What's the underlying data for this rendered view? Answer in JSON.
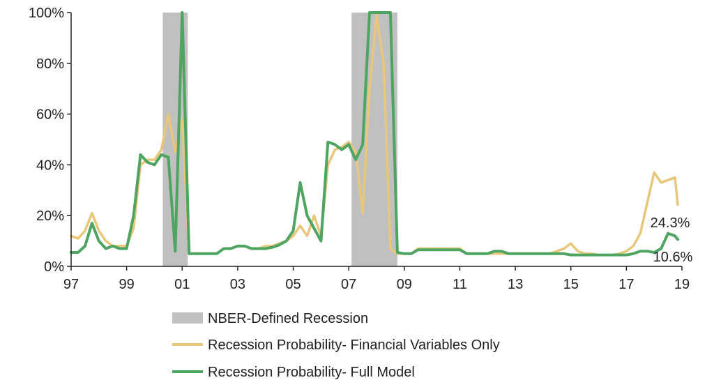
{
  "chart_data": {
    "type": "line",
    "x_tick_labels": [
      "97",
      "99",
      "01",
      "03",
      "05",
      "07",
      "09",
      "11",
      "13",
      "15",
      "17",
      "19"
    ],
    "y_tick_labels": [
      "0%",
      "20%",
      "40%",
      "60%",
      "80%",
      "100%"
    ],
    "xlim": [
      1997,
      2019
    ],
    "ylim": [
      0,
      100
    ],
    "grid": false,
    "legend_position": "bottom",
    "recessions": {
      "name": "NBER-Defined Recession",
      "color": "#c0c0c0",
      "periods": [
        [
          2000.3,
          2001.2
        ],
        [
          2007.1,
          2008.75
        ]
      ]
    },
    "series": [
      {
        "name": "Recession Probability- Financial Variables Only",
        "color": "#e8c77a",
        "end_label": "24.3%",
        "x": [
          1997.0,
          1997.25,
          1997.5,
          1997.75,
          1998.0,
          1998.25,
          1998.5,
          1998.75,
          1999.0,
          1999.25,
          1999.5,
          1999.75,
          2000.0,
          2000.25,
          2000.5,
          2000.75,
          2001.0,
          2001.25,
          2001.5,
          2001.75,
          2002.0,
          2002.25,
          2002.5,
          2002.75,
          2003.0,
          2003.25,
          2003.5,
          2003.75,
          2004.0,
          2004.25,
          2004.5,
          2004.75,
          2005.0,
          2005.25,
          2005.5,
          2005.75,
          2006.0,
          2006.25,
          2006.5,
          2006.75,
          2007.0,
          2007.25,
          2007.5,
          2007.75,
          2008.0,
          2008.25,
          2008.5,
          2008.75,
          2009.0,
          2009.25,
          2009.5,
          2009.75,
          2010.0,
          2010.25,
          2010.5,
          2010.75,
          2011.0,
          2011.25,
          2011.5,
          2011.75,
          2012.0,
          2012.25,
          2012.5,
          2012.75,
          2013.0,
          2013.25,
          2013.5,
          2013.75,
          2014.0,
          2014.25,
          2014.5,
          2014.75,
          2015.0,
          2015.25,
          2015.5,
          2015.75,
          2016.0,
          2016.25,
          2016.5,
          2016.75,
          2017.0,
          2017.25,
          2017.5,
          2017.75,
          2018.0,
          2018.25,
          2018.5,
          2018.75,
          2018.85
        ],
        "values": [
          12,
          11,
          14,
          21,
          14,
          10,
          8,
          8,
          8,
          15,
          40,
          42,
          42,
          46,
          60,
          45,
          58,
          5,
          5,
          5,
          5,
          5,
          7,
          7,
          8,
          8,
          7,
          7,
          8,
          8,
          9,
          10,
          12,
          16,
          12,
          20,
          12,
          40,
          46,
          47,
          49,
          45,
          21,
          70,
          99,
          80,
          7,
          5,
          5,
          5,
          7,
          7,
          7,
          7,
          7,
          7,
          7,
          5,
          5,
          5,
          5,
          5,
          5,
          5,
          5,
          5,
          5,
          5,
          5,
          5,
          6,
          7,
          9,
          6,
          5,
          5,
          4.5,
          4.5,
          4.5,
          5,
          6,
          8,
          13,
          25,
          37,
          33,
          34,
          35,
          24.3
        ]
      },
      {
        "name": "Recession Probability- Full Model",
        "color": "#4ea562",
        "end_label": "10.6%",
        "x": [
          1997.0,
          1997.25,
          1997.5,
          1997.75,
          1998.0,
          1998.25,
          1998.5,
          1998.75,
          1999.0,
          1999.25,
          1999.5,
          1999.75,
          2000.0,
          2000.25,
          2000.5,
          2000.75,
          2001.0,
          2001.25,
          2001.5,
          2001.75,
          2002.0,
          2002.25,
          2002.5,
          2002.75,
          2003.0,
          2003.25,
          2003.5,
          2003.75,
          2004.0,
          2004.25,
          2004.5,
          2004.75,
          2005.0,
          2005.25,
          2005.5,
          2005.75,
          2006.0,
          2006.25,
          2006.5,
          2006.75,
          2007.0,
          2007.25,
          2007.5,
          2007.75,
          2008.0,
          2008.25,
          2008.5,
          2008.75,
          2009.0,
          2009.25,
          2009.5,
          2009.75,
          2010.0,
          2010.25,
          2010.5,
          2010.75,
          2011.0,
          2011.25,
          2011.5,
          2011.75,
          2012.0,
          2012.25,
          2012.5,
          2012.75,
          2013.0,
          2013.25,
          2013.5,
          2013.75,
          2014.0,
          2014.25,
          2014.5,
          2014.75,
          2015.0,
          2015.25,
          2015.5,
          2015.75,
          2016.0,
          2016.25,
          2016.5,
          2016.75,
          2017.0,
          2017.25,
          2017.5,
          2017.75,
          2018.0,
          2018.25,
          2018.5,
          2018.75,
          2018.85
        ],
        "values": [
          5.5,
          5.5,
          8,
          17,
          10,
          7,
          8,
          7,
          7,
          20,
          44,
          41,
          40,
          44,
          43,
          6,
          100,
          5,
          5,
          5,
          5,
          5,
          7,
          7,
          8,
          8,
          7,
          7,
          7,
          7.5,
          8.5,
          10,
          14,
          33,
          20,
          15,
          10,
          49,
          48,
          46,
          48,
          42,
          48,
          100,
          100,
          100,
          100,
          5.5,
          5,
          5,
          6.5,
          6.5,
          6.5,
          6.5,
          6.5,
          6.5,
          6.5,
          5,
          5,
          5,
          5,
          6,
          6,
          5,
          5,
          5,
          5,
          5,
          5,
          5,
          5,
          5,
          4.5,
          4.5,
          4.5,
          4.5,
          4.5,
          4.5,
          4.5,
          4.5,
          4.5,
          5,
          6,
          6,
          5.5,
          7,
          13,
          12,
          10.6
        ]
      }
    ]
  }
}
